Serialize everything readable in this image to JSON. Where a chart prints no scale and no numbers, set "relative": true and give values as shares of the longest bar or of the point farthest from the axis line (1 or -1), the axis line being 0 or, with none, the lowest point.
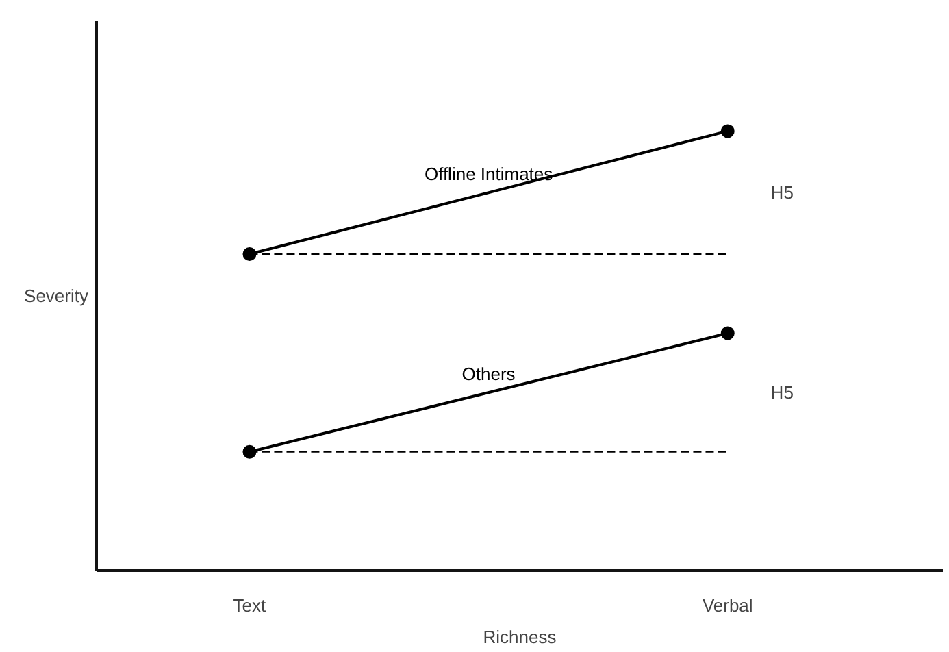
{
  "chart_data": {
    "type": "line",
    "relative": true,
    "xlabel": "Richness",
    "ylabel": "Severity",
    "categories": [
      "Text",
      "Verbal"
    ],
    "grid": false,
    "legend": false,
    "series": [
      {
        "name": "Offline Intimates",
        "color": "#000000",
        "values": [
          0.72,
          1.0
        ],
        "marker": "circle",
        "line_style": "solid"
      },
      {
        "color": "#000000",
        "values": [
          0.72,
          0.72
        ],
        "line_style": "dashed"
      },
      {
        "name": "Others",
        "color": "#000000",
        "values": [
          0.27,
          0.54
        ],
        "marker": "circle",
        "line_style": "solid"
      },
      {
        "color": "#000000",
        "values": [
          0.27,
          0.27
        ],
        "line_style": "dashed"
      }
    ],
    "annotations": [
      "H5",
      "H5"
    ]
  }
}
